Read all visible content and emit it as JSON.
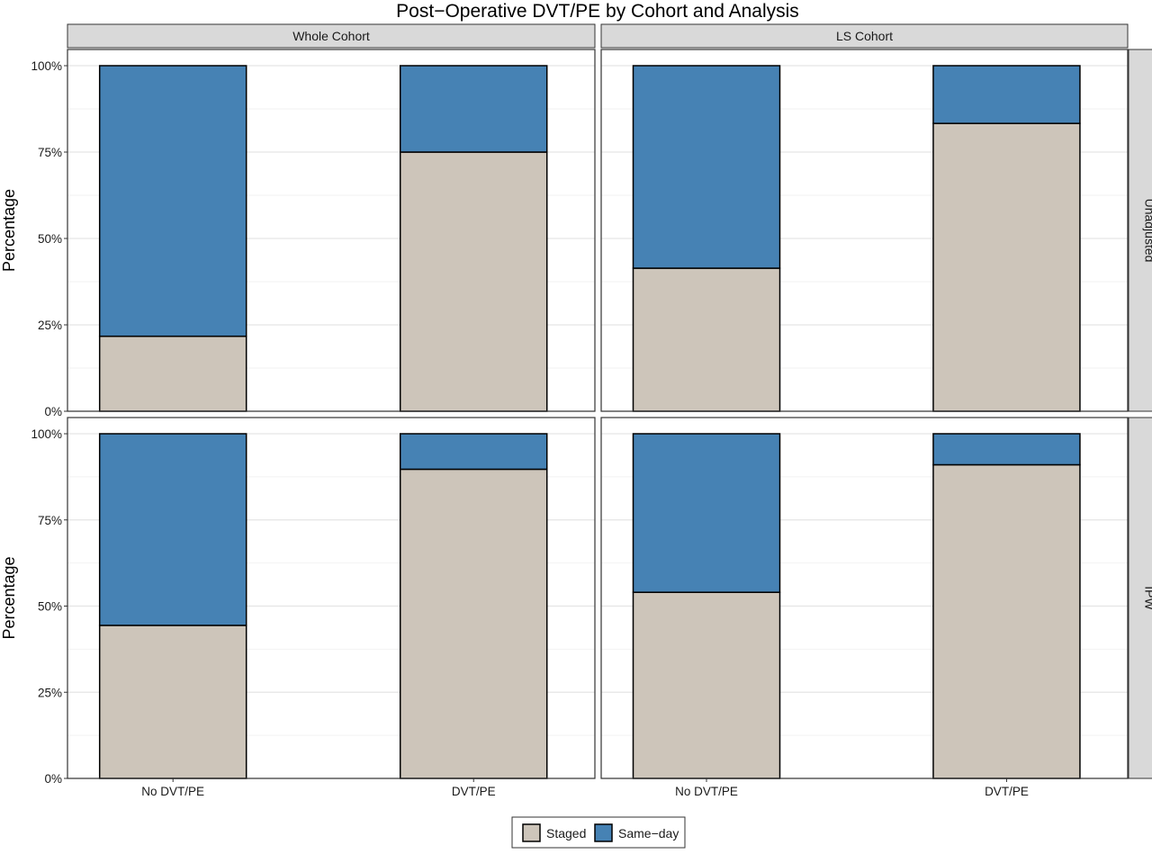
{
  "chart_data": {
    "type": "bar",
    "title": "Post−Operative DVT/PE by Cohort and Analysis",
    "ylabel": "Percentage",
    "xlabel": "",
    "stacked": true,
    "ylim": [
      0,
      100
    ],
    "yticks": [
      "0%",
      "25%",
      "50%",
      "75%",
      "100%"
    ],
    "grid": true,
    "legend_position": "bottom",
    "categories": [
      "No DVT/PE",
      "DVT/PE"
    ],
    "colors": {
      "Staged": "#CDC5BA",
      "Same-day": "#4682B4"
    },
    "facet_columns": [
      "Whole Cohort",
      "LS Cohort"
    ],
    "facet_rows": [
      "Unadjusted",
      "IPW"
    ],
    "legend": [
      {
        "name": "Staged",
        "color": "#CDC5BA"
      },
      {
        "name": "Same−day",
        "color": "#4682B4"
      }
    ],
    "panels": [
      {
        "column": "Whole Cohort",
        "row": "Unadjusted",
        "series": [
          {
            "name": "Staged",
            "values": [
              21.7,
              75.0
            ]
          },
          {
            "name": "Same−day",
            "values": [
              78.3,
              25.0
            ]
          }
        ]
      },
      {
        "column": "LS Cohort",
        "row": "Unadjusted",
        "series": [
          {
            "name": "Staged",
            "values": [
              41.4,
              83.3
            ]
          },
          {
            "name": "Same−day",
            "values": [
              58.6,
              16.7
            ]
          }
        ]
      },
      {
        "column": "Whole Cohort",
        "row": "IPW",
        "series": [
          {
            "name": "Staged",
            "values": [
              44.4,
              89.7
            ]
          },
          {
            "name": "Same−day",
            "values": [
              55.6,
              10.3
            ]
          }
        ]
      },
      {
        "column": "LS Cohort",
        "row": "IPW",
        "series": [
          {
            "name": "Staged",
            "values": [
              54.0,
              91.0
            ]
          },
          {
            "name": "Same−day",
            "values": [
              46.0,
              9.0
            ]
          }
        ]
      }
    ]
  }
}
